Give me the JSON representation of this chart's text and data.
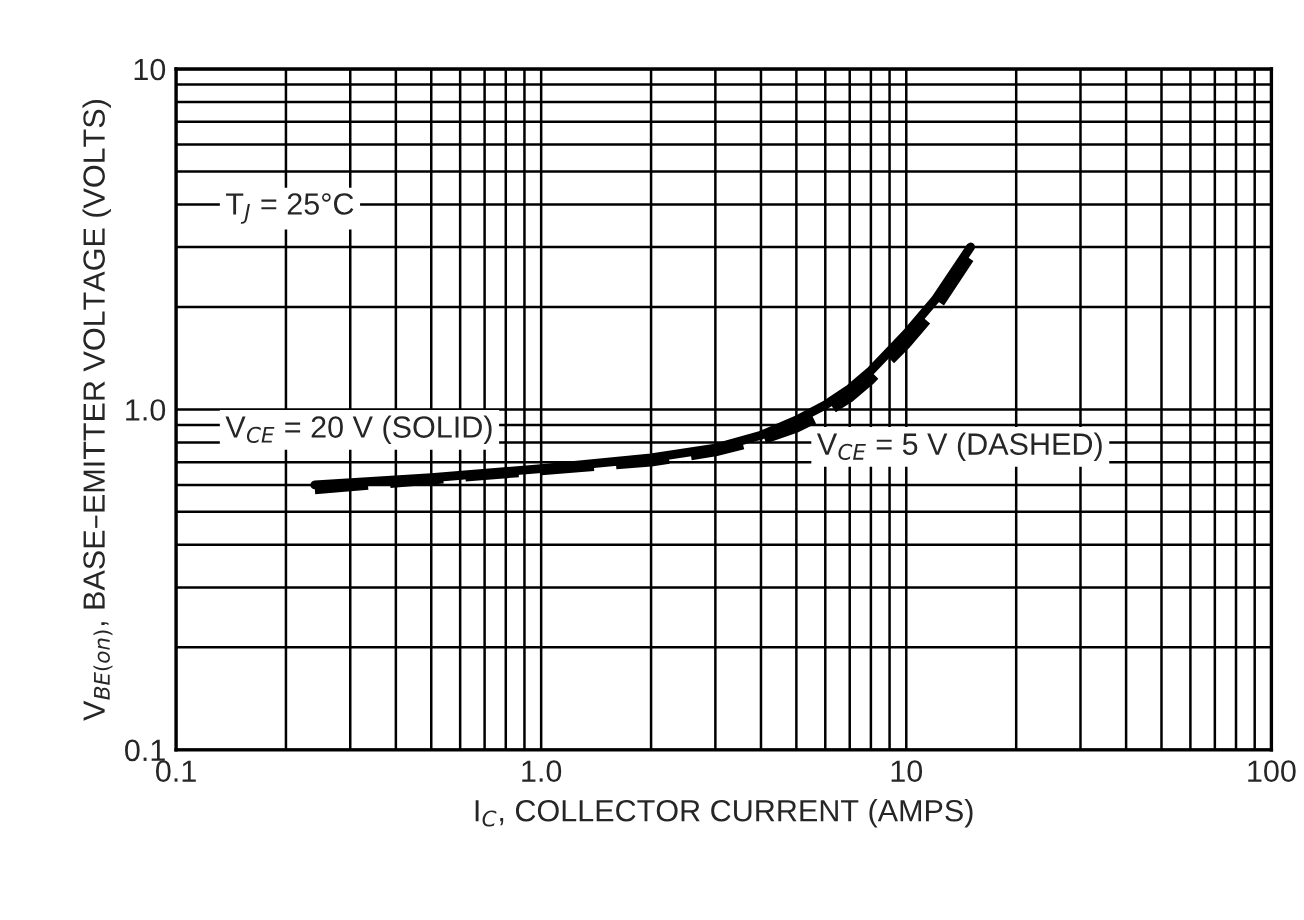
{
  "chart_data": {
    "type": "line",
    "xlabel": "I$_{C}$, COLLECTOR CURRENT (AMPS)",
    "ylabel": "V$_{BE(on)}$, BASE–EMITTER VOLTAGE (VOLTS)",
    "log": "xy",
    "grid": true,
    "legend": false,
    "marker": "none",
    "xlim": [
      0.1,
      100
    ],
    "ylim": [
      0.1,
      10
    ],
    "xticks": [
      0.1,
      {
        "value": 1,
        "label": "1.0"
      },
      10,
      100
    ],
    "yticks": [
      0.1,
      {
        "value": 1,
        "label": "1.0"
      },
      10
    ],
    "annotations": [
      "T$_{J}$ = 25°C"
    ],
    "series": [
      {
        "name": "V$_{CE}$ = 20 V (SOLID)",
        "color": "#000000",
        "line_style": "solid",
        "x": [
          0.24,
          0.5,
          1,
          2,
          3,
          4,
          5,
          6,
          7,
          8,
          10,
          12,
          15
        ],
        "values": [
          0.6,
          0.63,
          0.67,
          0.72,
          0.77,
          0.84,
          0.93,
          1.03,
          1.15,
          1.3,
          1.67,
          2.1,
          3.0
        ]
      },
      {
        "name": "V$_{CE}$ = 5 V (DASHED)",
        "color": "#000000",
        "line_style": "dashed",
        "x": [
          0.24,
          0.5,
          1,
          2,
          3,
          4,
          5,
          6,
          7,
          8,
          10,
          12,
          15
        ],
        "values": [
          0.58,
          0.62,
          0.66,
          0.7,
          0.75,
          0.81,
          0.88,
          0.97,
          1.08,
          1.22,
          1.55,
          1.95,
          2.8
        ]
      }
    ]
  }
}
